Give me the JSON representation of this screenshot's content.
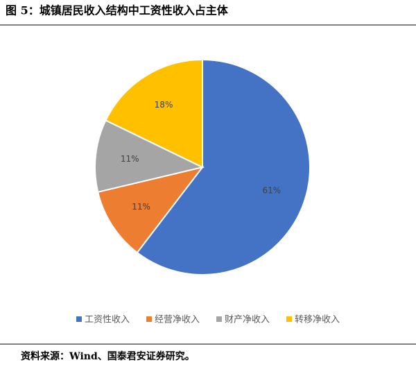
{
  "chart_data": {
    "type": "pie",
    "title": "图 5：城镇居民收入结构中工资性收入占主体",
    "source": "资料来源：Wind、国泰君安证券研究。",
    "categories": [
      "工资性收入",
      "经营净收入",
      "财产净收入",
      "转移净收入"
    ],
    "values": [
      61,
      11,
      11,
      18
    ],
    "value_labels": [
      "61%",
      "11%",
      "11%",
      "18%"
    ],
    "colors": [
      "#4472c4",
      "#ed7d31",
      "#a5a5a5",
      "#ffc000"
    ],
    "legend": "bottom"
  }
}
